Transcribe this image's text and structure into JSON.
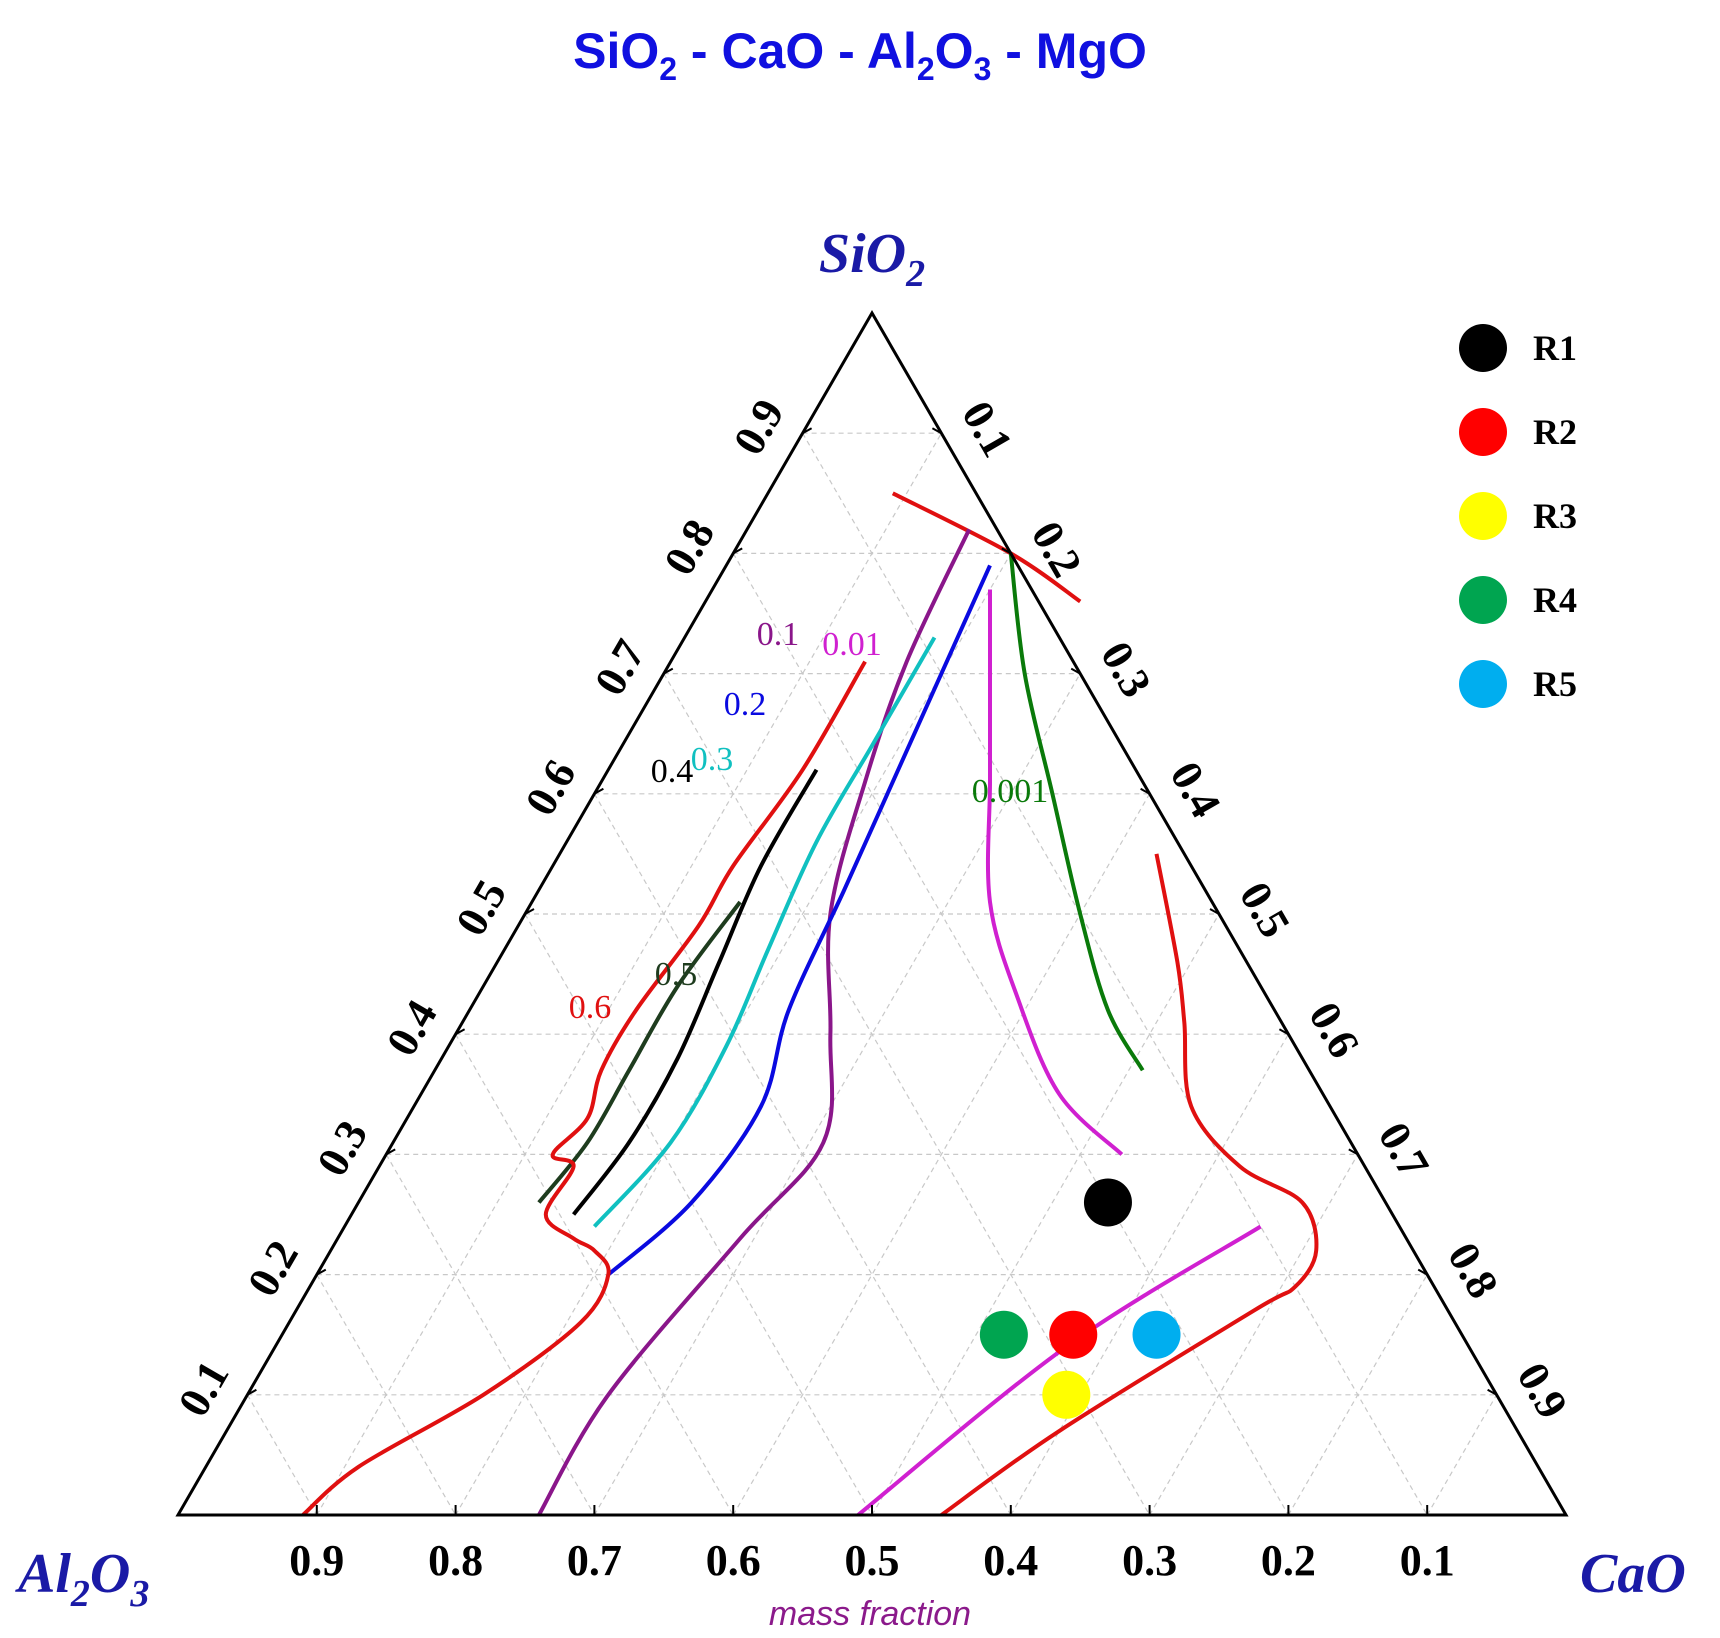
{
  "chart_data": {
    "type": "ternary-contour",
    "title": {
      "base": "SiO",
      "s1": "2",
      "mid": " - CaO - Al",
      "s2": "2",
      "o": "O",
      "s3": "3",
      "end": " - MgO"
    },
    "vertices": {
      "top": {
        "base": "SiO",
        "sub": "2"
      },
      "left": {
        "base": "Al",
        "sub1": "2",
        "mid": "O",
        "sub2": "3"
      },
      "right": {
        "base": "CaO"
      }
    },
    "axis_note": "mass fraction",
    "bottom_ticks": [
      "0.9",
      "0.8",
      "0.7",
      "0.6",
      "0.5",
      "0.4",
      "0.3",
      "0.2",
      "0.1"
    ],
    "left_ticks": [
      "0.9",
      "0.8",
      "0.7",
      "0.6",
      "0.5",
      "0.4",
      "0.3",
      "0.2",
      "0.1"
    ],
    "right_ticks": [
      "0.1",
      "0.2",
      "0.3",
      "0.4",
      "0.5",
      "0.6",
      "0.7",
      "0.8",
      "0.9"
    ],
    "grid": true,
    "contours": [
      {
        "label": "0.001",
        "color": "#0a7a0a",
        "points": [
          [
            0.2,
            0.8
          ],
          [
            0.26,
            0.7
          ],
          [
            0.33,
            0.6
          ],
          [
            0.4,
            0.5
          ],
          [
            0.46,
            0.42
          ],
          [
            0.51,
            0.37
          ]
        ]
      },
      {
        "label": "0.01",
        "color": "#d020d0",
        "points": [
          [
            0.2,
            0.77
          ],
          [
            0.24,
            0.69
          ],
          [
            0.28,
            0.61
          ],
          [
            0.33,
            0.51
          ],
          [
            0.39,
            0.43
          ],
          [
            0.46,
            0.35
          ],
          [
            0.53,
            0.3
          ]
        ]
      },
      {
        "label": "0.1",
        "color": "#8a168a",
        "points": [
          [
            0.16,
            0.82
          ],
          [
            0.17,
            0.71
          ],
          [
            0.19,
            0.61
          ],
          [
            0.22,
            0.5
          ],
          [
            0.27,
            0.4
          ],
          [
            0.31,
            0.31
          ],
          [
            0.29,
            0.23
          ],
          [
            0.26,
            0.1
          ],
          [
            0.26,
            0.0
          ]
        ]
      },
      {
        "label": "0.2",
        "color": "#0a0ae0",
        "points": [
          [
            0.19,
            0.79
          ],
          [
            0.2,
            0.7
          ],
          [
            0.21,
            0.61
          ],
          [
            0.22,
            0.52
          ],
          [
            0.23,
            0.42
          ],
          [
            0.25,
            0.34
          ],
          [
            0.24,
            0.26
          ],
          [
            0.21,
            0.2
          ]
        ]
      },
      {
        "label": "0.3",
        "color": "#10c0c0",
        "points": [
          [
            0.18,
            0.73
          ],
          [
            0.18,
            0.64
          ],
          [
            0.18,
            0.56
          ],
          [
            0.19,
            0.47
          ],
          [
            0.2,
            0.39
          ],
          [
            0.2,
            0.31
          ],
          [
            0.18,
            0.24
          ]
        ]
      },
      {
        "label": "0.4",
        "color": "#000000",
        "points": [
          [
            0.15,
            0.62
          ],
          [
            0.15,
            0.54
          ],
          [
            0.16,
            0.46
          ],
          [
            0.17,
            0.38
          ],
          [
            0.17,
            0.31
          ],
          [
            0.16,
            0.25
          ]
        ]
      },
      {
        "label": "0.5",
        "color": "#1e3c1e",
        "points": [
          [
            0.15,
            0.51
          ],
          [
            0.14,
            0.44
          ],
          [
            0.14,
            0.37
          ],
          [
            0.14,
            0.31
          ],
          [
            0.13,
            0.26
          ]
        ]
      },
      {
        "label": "0.6",
        "color": "#e01010",
        "points": [
          [
            0.14,
            0.71
          ],
          [
            0.14,
            0.62
          ],
          [
            0.13,
            0.54
          ],
          [
            0.13,
            0.49
          ],
          [
            0.12,
            0.42
          ],
          [
            0.12,
            0.37
          ],
          [
            0.13,
            0.33
          ],
          [
            0.12,
            0.3
          ],
          [
            0.14,
            0.29
          ],
          [
            0.14,
            0.25
          ],
          [
            0.17,
            0.23
          ],
          [
            0.19,
            0.22
          ],
          [
            0.21,
            0.2
          ],
          [
            0.21,
            0.16
          ],
          [
            0.17,
            0.1
          ],
          [
            0.11,
            0.04
          ],
          [
            0.09,
            0.0
          ]
        ]
      }
    ],
    "region_boundaries": [
      {
        "color": "#e01010",
        "points": [
          [
            0.09,
            0.85
          ],
          [
            0.2,
            0.8
          ],
          [
            0.27,
            0.76
          ]
        ]
      },
      {
        "color": "#e01010",
        "points": [
          [
            0.43,
            0.55
          ],
          [
            0.49,
            0.46
          ],
          [
            0.52,
            0.41
          ],
          [
            0.56,
            0.34
          ],
          [
            0.62,
            0.29
          ],
          [
            0.68,
            0.26
          ],
          [
            0.71,
            0.22
          ],
          [
            0.71,
            0.19
          ],
          [
            0.69,
            0.17
          ],
          [
            0.6,
            0.07
          ],
          [
            0.55,
            0.0
          ]
        ]
      },
      {
        "color": "#d020d0",
        "points": [
          [
            0.66,
            0.24
          ],
          [
            0.57,
            0.14
          ],
          [
            0.49,
            0.0
          ]
        ]
      }
    ],
    "legend": [
      {
        "name": "R1",
        "color": "#000000",
        "point": [
          0.54,
          0.26
        ]
      },
      {
        "name": "R2",
        "color": "#ff0000",
        "point": [
          0.57,
          0.15
        ]
      },
      {
        "name": "R3",
        "color": "#ffff00",
        "point": [
          0.59,
          0.1
        ]
      },
      {
        "name": "R4",
        "color": "#00a550",
        "point": [
          0.52,
          0.15
        ]
      },
      {
        "name": "R5",
        "color": "#00aeef",
        "point": [
          0.63,
          0.15
        ]
      }
    ]
  }
}
